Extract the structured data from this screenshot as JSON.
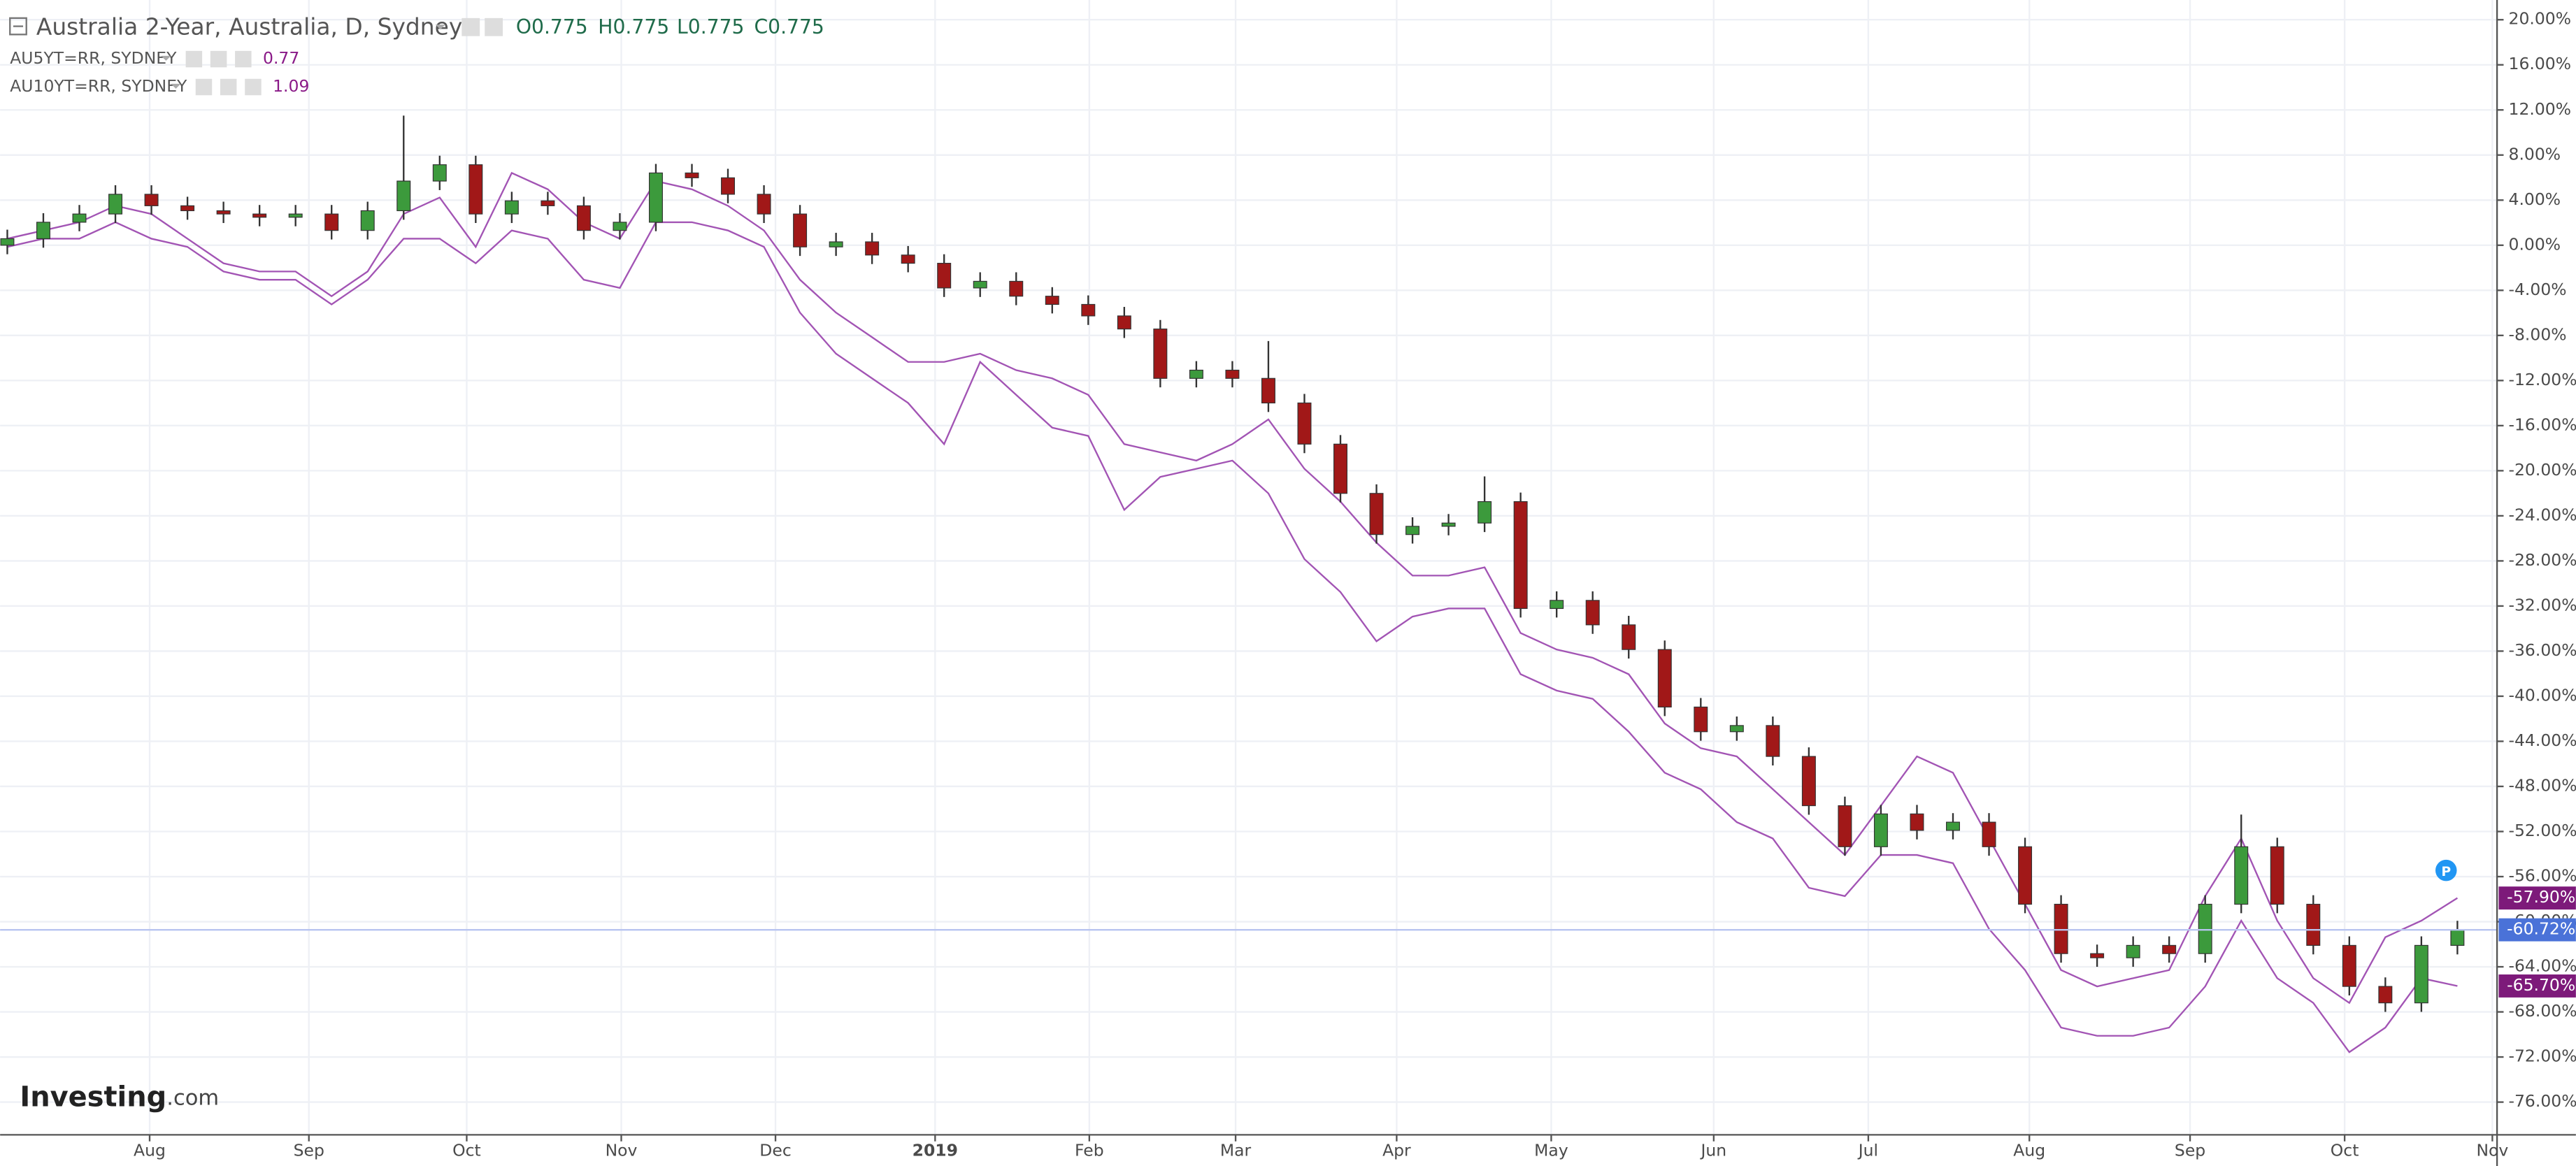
{
  "chart_data": {
    "type": "candlestick",
    "title": "Australia 2-Year, Australia, D, Sydney",
    "ohlc_labels": [
      "O0.775",
      "H0.775",
      "L0.775",
      "C0.775"
    ],
    "logo": [
      "Investing",
      ".com"
    ],
    "marker_label": "P",
    "up_color": "#3c9a3c",
    "down_color": "#a11818",
    "last_color": "#4a72d8",
    "last_label": "-60.72%",
    "xlim": [
      -0.2,
      69.1
    ],
    "ylim": [
      -78.9,
      21.75
    ],
    "grid": true,
    "xticks": [
      {
        "value": 3.95,
        "label": "Aug"
      },
      {
        "value": 8.37,
        "label": "Sep"
      },
      {
        "value": 12.75,
        "label": "Oct"
      },
      {
        "value": 17.04,
        "label": "Nov"
      },
      {
        "value": 21.32,
        "label": "Dec"
      },
      {
        "value": 25.75,
        "label": "2019"
      },
      {
        "value": 30.03,
        "label": "Feb"
      },
      {
        "value": 34.09,
        "label": "Mar"
      },
      {
        "value": 38.56,
        "label": "Apr"
      },
      {
        "value": 42.85,
        "label": "May"
      },
      {
        "value": 47.36,
        "label": "Jun"
      },
      {
        "value": 51.65,
        "label": "Jul"
      },
      {
        "value": 56.12,
        "label": "Aug"
      },
      {
        "value": 60.58,
        "label": "Sep"
      },
      {
        "value": 64.87,
        "label": "Oct"
      },
      {
        "value": 68.97,
        "label": "Nov"
      }
    ],
    "yticks": [
      {
        "value": 20,
        "label": "20.00%"
      },
      {
        "value": 16,
        "label": "16.00%"
      },
      {
        "value": 12,
        "label": "12.00%"
      },
      {
        "value": 8,
        "label": "8.00%"
      },
      {
        "value": 4,
        "label": "4.00%"
      },
      {
        "value": 0,
        "label": "0.00%"
      },
      {
        "value": -4,
        "label": "-4.00%"
      },
      {
        "value": -8,
        "label": "-8.00%"
      },
      {
        "value": -12,
        "label": "-12.00%"
      },
      {
        "value": -16,
        "label": "-16.00%"
      },
      {
        "value": -20,
        "label": "-20.00%"
      },
      {
        "value": -24,
        "label": "-24.00%"
      },
      {
        "value": -28,
        "label": "-28.00%"
      },
      {
        "value": -32,
        "label": "-32.00%"
      },
      {
        "value": -36,
        "label": "-36.00%"
      },
      {
        "value": -40,
        "label": "-40.00%"
      },
      {
        "value": -44,
        "label": "-44.00%"
      },
      {
        "value": -48,
        "label": "-48.00%"
      },
      {
        "value": -52,
        "label": "-52.00%"
      },
      {
        "value": -56,
        "label": "-56.00%"
      },
      {
        "value": -60,
        "label": "-60.00%"
      },
      {
        "value": -64,
        "label": "-64.00%"
      },
      {
        "value": -68,
        "label": "-68.00%"
      },
      {
        "value": -72,
        "label": "-72.00%"
      },
      {
        "value": -76,
        "label": "-76.00%"
      }
    ],
    "x": [
      0,
      1,
      2,
      3,
      4,
      5,
      6,
      7,
      8,
      9,
      10,
      11,
      12,
      13,
      14,
      15,
      16,
      17,
      18,
      19,
      20,
      21,
      22,
      23,
      24,
      25,
      26,
      27,
      28,
      29,
      30,
      31,
      32,
      33,
      34,
      35,
      36,
      37,
      38,
      39,
      40,
      41,
      42,
      43,
      44,
      45,
      46,
      47,
      48,
      49,
      50,
      51,
      52,
      53,
      54,
      55,
      56,
      57,
      58,
      59,
      60,
      61,
      62,
      63,
      64,
      65,
      66,
      67,
      68
    ],
    "open": [
      0.0,
      0.58,
      2.04,
      2.77,
      4.52,
      3.5,
      3.06,
      2.77,
      2.48,
      2.77,
      1.31,
      3.06,
      5.69,
      7.14,
      2.77,
      3.94,
      3.5,
      1.31,
      2.04,
      6.41,
      5.98,
      4.52,
      2.77,
      -0.15,
      0.3,
      -0.87,
      -1.6,
      -3.79,
      -3.2,
      -4.52,
      -5.25,
      -6.27,
      -7.43,
      -11.81,
      -11.08,
      -11.81,
      -13.99,
      -17.64,
      -22.01,
      -25.66,
      -24.93,
      -24.64,
      -22.74,
      -32.22,
      -31.5,
      -33.67,
      -35.86,
      -40.96,
      -43.15,
      -42.6,
      -45.34,
      -49.71,
      -53.35,
      -50.44,
      -51.9,
      -51.17,
      -53.35,
      -58.45,
      -62.83,
      -63.2,
      -62.1,
      -62.83,
      -58.45,
      -53.35,
      -58.45,
      -62.1,
      -65.74,
      -67.2,
      -62.1
    ],
    "high": [
      1.38,
      2.84,
      3.57,
      5.32,
      5.32,
      4.3,
      3.86,
      3.57,
      3.57,
      3.57,
      3.86,
      11.5,
      7.94,
      7.94,
      4.74,
      4.74,
      4.3,
      2.84,
      7.21,
      7.21,
      6.78,
      5.32,
      3.57,
      1.1,
      1.1,
      -0.07,
      -0.8,
      -2.4,
      -2.4,
      -3.72,
      -4.45,
      -5.47,
      -6.63,
      -10.28,
      -10.28,
      -8.5,
      -13.19,
      -16.84,
      -21.21,
      -24.13,
      -23.84,
      -20.5,
      -21.94,
      -30.7,
      -30.7,
      -32.87,
      -35.06,
      -40.16,
      -41.8,
      -41.8,
      -44.54,
      -48.91,
      -49.64,
      -49.64,
      -50.37,
      -50.37,
      -52.55,
      -57.65,
      -62.03,
      -61.3,
      -61.3,
      -57.65,
      -50.5,
      -52.55,
      -57.65,
      -61.3,
      -64.94,
      -61.3,
      -59.92
    ],
    "low": [
      -0.8,
      -0.22,
      1.24,
      1.97,
      2.7,
      2.26,
      1.97,
      1.68,
      1.68,
      0.51,
      0.51,
      2.26,
      4.89,
      1.97,
      1.97,
      2.7,
      0.51,
      0.51,
      1.24,
      5.18,
      3.72,
      1.97,
      -0.95,
      -0.95,
      -1.67,
      -2.4,
      -4.59,
      -4.59,
      -5.32,
      -6.05,
      -7.07,
      -8.23,
      -12.61,
      -12.61,
      -12.61,
      -14.79,
      -18.44,
      -22.81,
      -26.46,
      -26.46,
      -25.73,
      -25.44,
      -33.02,
      -33.02,
      -34.47,
      -36.66,
      -41.76,
      -43.95,
      -43.95,
      -46.14,
      -50.51,
      -54.15,
      -54.15,
      -52.7,
      -52.7,
      -54.15,
      -59.25,
      -63.63,
      -64.0,
      -64.0,
      -63.63,
      -63.63,
      -59.25,
      -59.25,
      -62.9,
      -66.54,
      -68.0,
      -68.0,
      -62.9
    ],
    "close": [
      0.58,
      2.04,
      2.77,
      4.52,
      3.5,
      3.06,
      2.77,
      2.48,
      2.77,
      1.31,
      3.06,
      5.69,
      7.14,
      2.77,
      3.94,
      3.5,
      1.31,
      2.04,
      6.41,
      5.98,
      4.52,
      2.77,
      -0.15,
      0.3,
      -0.87,
      -1.6,
      -3.79,
      -3.2,
      -4.52,
      -5.25,
      -6.27,
      -7.43,
      -11.81,
      -11.08,
      -11.81,
      -13.99,
      -17.64,
      -22.01,
      -25.66,
      -24.93,
      -24.64,
      -22.74,
      -32.22,
      -31.5,
      -33.67,
      -35.86,
      -40.96,
      -43.15,
      -42.6,
      -45.34,
      -49.71,
      -53.35,
      -50.44,
      -51.9,
      -51.17,
      -53.35,
      -58.45,
      -62.83,
      -63.2,
      -62.1,
      -62.83,
      -58.45,
      -53.35,
      -58.45,
      -62.1,
      -65.74,
      -67.2,
      -62.1,
      -60.72
    ],
    "series": [
      {
        "name": "AU5YT=RR, SYDNEY",
        "legend_value": "0.77",
        "color": "#a254b4",
        "label_color": "#7d1a7a",
        "last_label": "-57.90%",
        "values": [
          0.58,
          1.31,
          2.04,
          3.5,
          2.77,
          0.58,
          -1.6,
          -2.33,
          -2.33,
          -4.52,
          -2.33,
          2.77,
          4.23,
          -0.15,
          6.41,
          4.96,
          2.04,
          0.58,
          5.69,
          4.96,
          3.5,
          1.31,
          -3.06,
          -5.98,
          -8.16,
          -10.35,
          -10.35,
          -9.62,
          -11.08,
          -11.81,
          -13.27,
          -17.64,
          -18.37,
          -19.1,
          -17.64,
          -15.45,
          -19.83,
          -22.74,
          -26.38,
          -29.3,
          -29.3,
          -28.57,
          -34.4,
          -35.86,
          -36.59,
          -38.05,
          -42.42,
          -44.61,
          -45.34,
          -48.25,
          -51.17,
          -54.08,
          -49.71,
          -45.34,
          -46.79,
          -52.62,
          -58.45,
          -64.29,
          -65.74,
          -65.01,
          -64.29,
          -57.73,
          -52.62,
          -59.91,
          -65.01,
          -67.2,
          -61.37,
          -59.91,
          -57.9
        ]
      },
      {
        "name": "AU10YT=RR, SYDNEY",
        "legend_value": "1.09",
        "color": "#a254b4",
        "label_color": "#7d1a7a",
        "last_label": "-65.70%",
        "values": [
          -0.15,
          0.58,
          0.58,
          2.04,
          0.58,
          -0.15,
          -2.33,
          -3.06,
          -3.06,
          -5.25,
          -3.06,
          0.58,
          0.58,
          -1.6,
          1.31,
          0.58,
          -3.06,
          -3.79,
          2.04,
          2.04,
          1.31,
          -0.15,
          -5.98,
          -9.62,
          -11.81,
          -13.99,
          -17.64,
          -10.35,
          -13.27,
          -16.18,
          -16.91,
          -23.47,
          -20.55,
          -19.83,
          -19.1,
          -22.01,
          -27.84,
          -30.76,
          -35.13,
          -32.94,
          -32.22,
          -32.22,
          -38.05,
          -39.5,
          -40.23,
          -43.15,
          -46.79,
          -48.25,
          -51.17,
          -52.62,
          -56.99,
          -57.73,
          -54.08,
          -54.08,
          -54.81,
          -60.64,
          -64.29,
          -69.39,
          -70.12,
          -70.12,
          -69.39,
          -65.74,
          -59.91,
          -65.01,
          -67.2,
          -71.57,
          -69.39,
          -65.01,
          -65.7
        ]
      }
    ]
  }
}
